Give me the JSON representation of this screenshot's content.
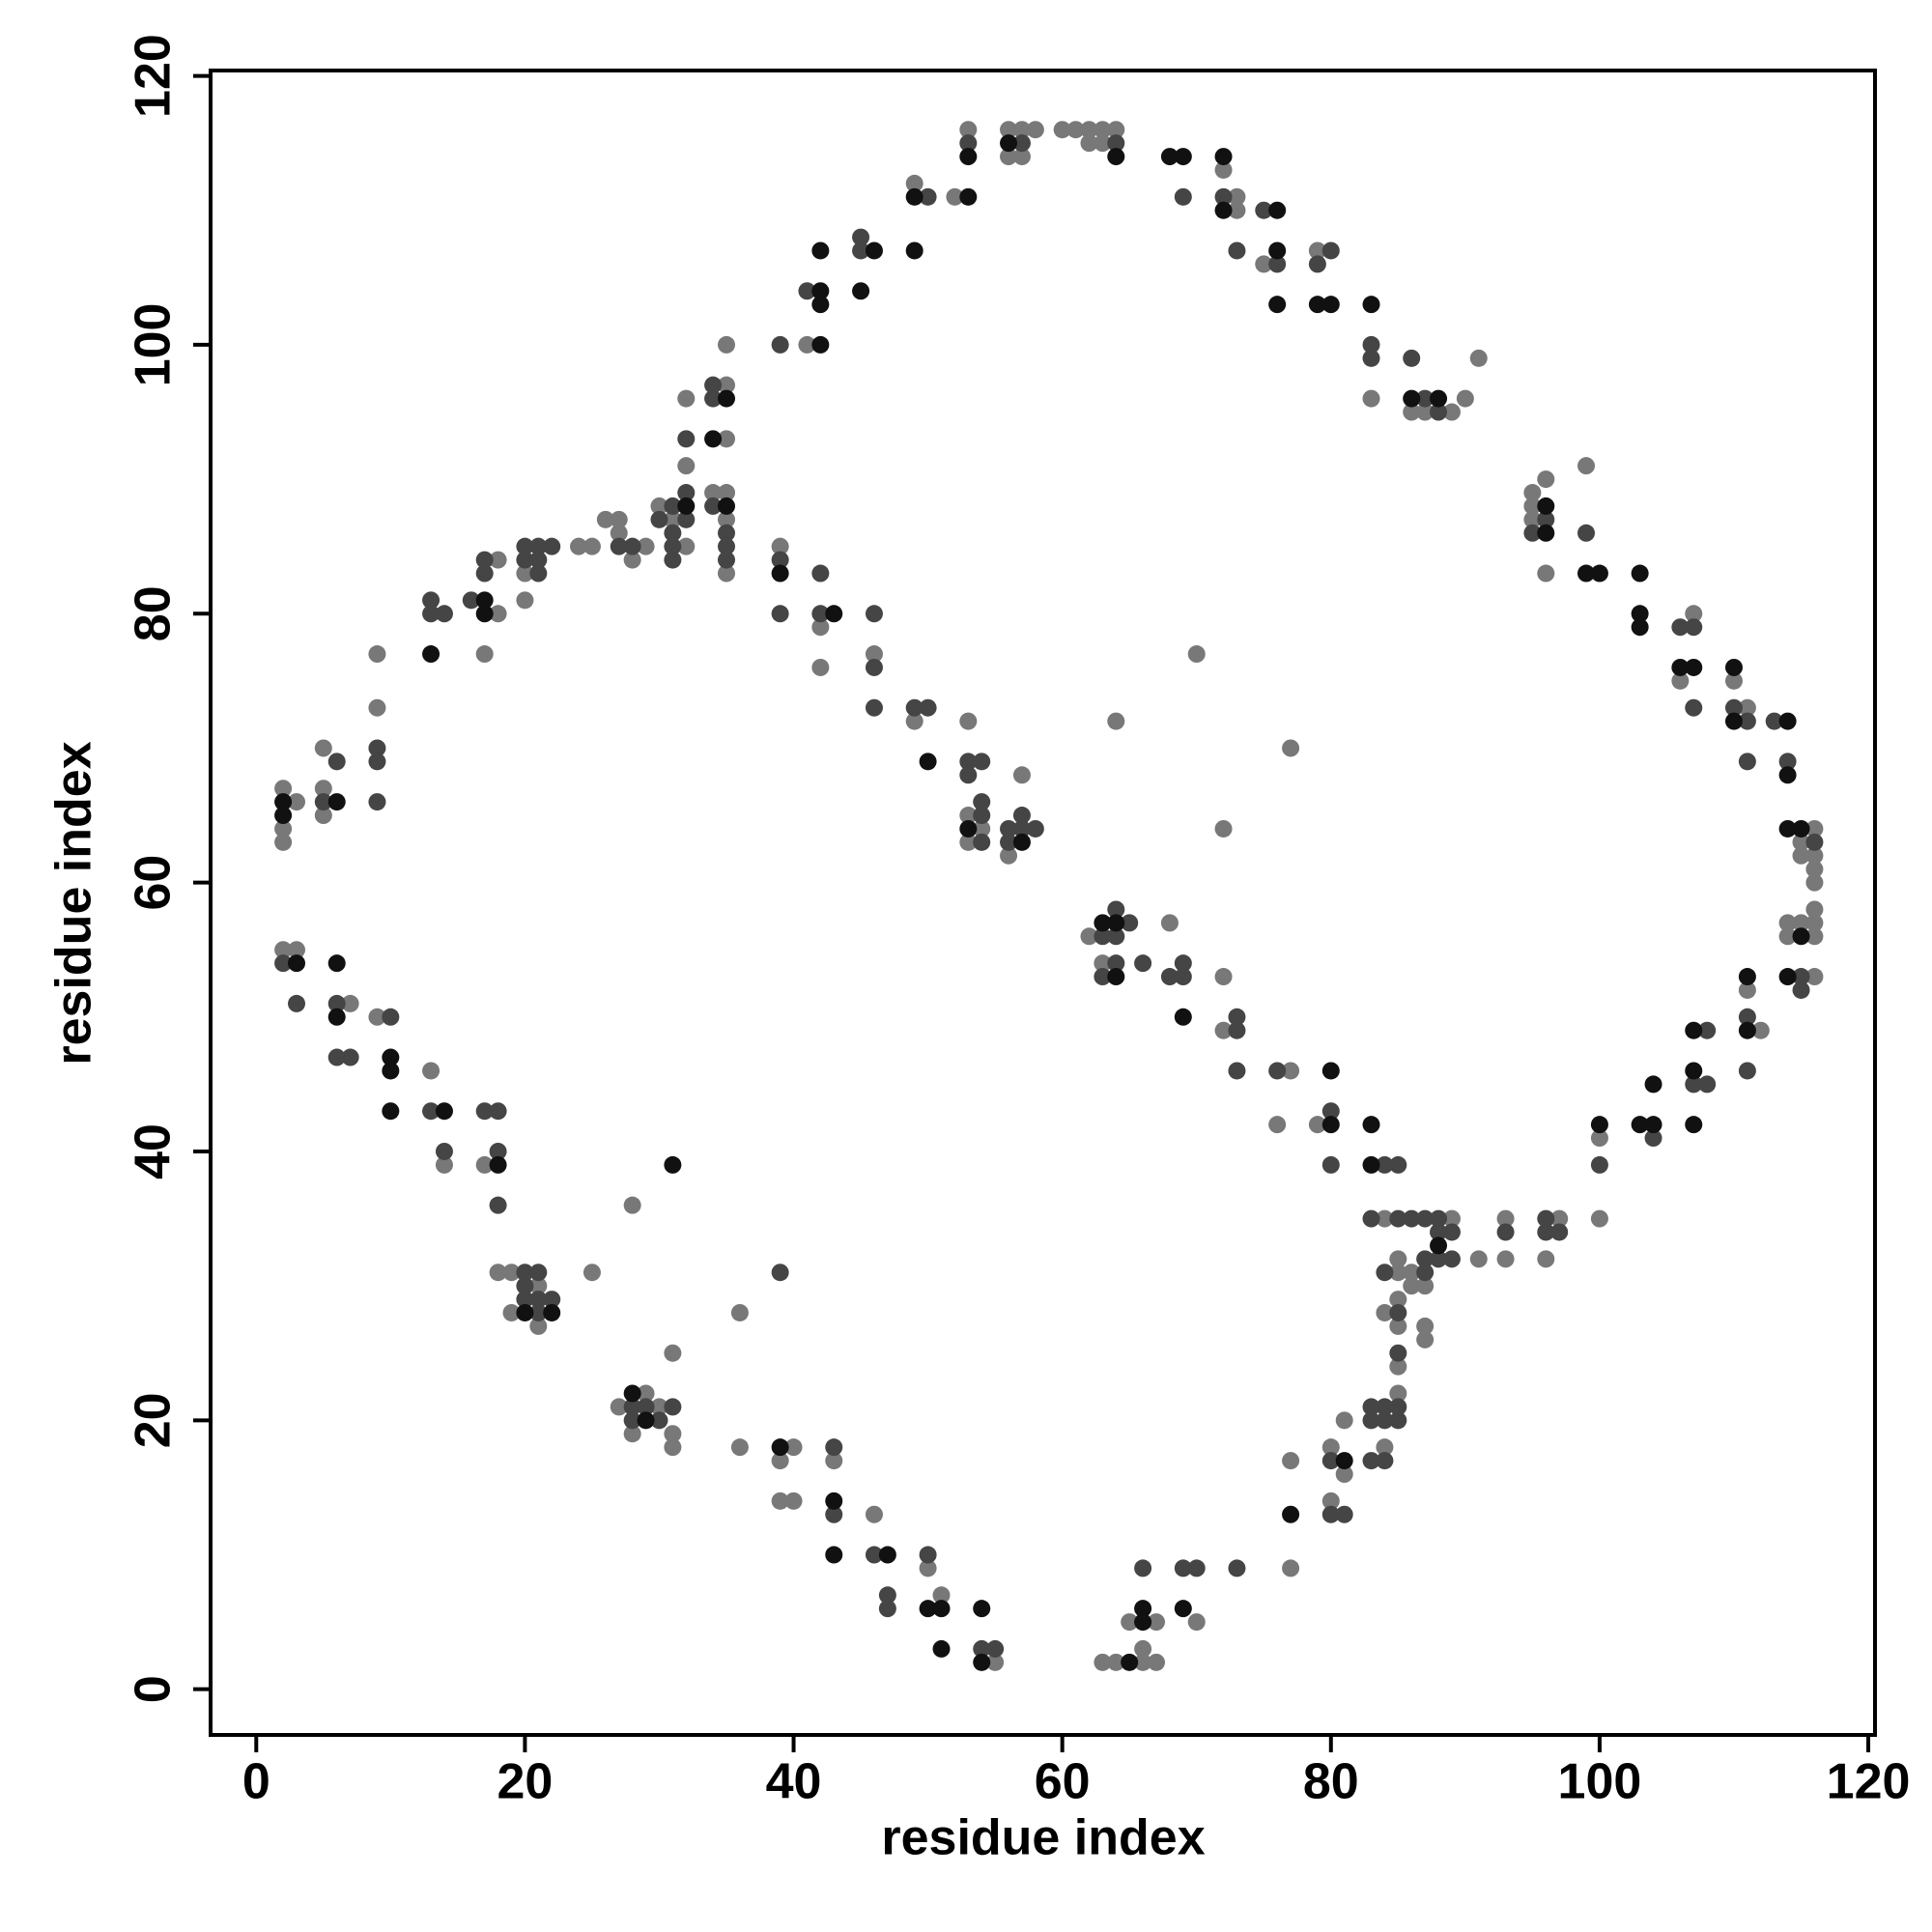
{
  "chart_data": {
    "type": "scatter",
    "x_label": "residue index",
    "y_label": "residue index",
    "xlim": [
      -3.4,
      120.5
    ],
    "ylim": [
      -3.4,
      120.4
    ],
    "xticks": [
      0,
      20,
      40,
      60,
      80,
      100,
      120
    ],
    "yticks": [
      0,
      20,
      40,
      60,
      80,
      100,
      120
    ],
    "series": [
      {
        "color": "#787878",
        "x": [
          2,
          2,
          2,
          3,
          5,
          5,
          5,
          9,
          9,
          7,
          9,
          2,
          3,
          13,
          14,
          17,
          17,
          18,
          18,
          18,
          19,
          19,
          20,
          20,
          21,
          21,
          24,
          25,
          25,
          26,
          27,
          27,
          28,
          29,
          28,
          27,
          28,
          29,
          30,
          31,
          31,
          31,
          30,
          31,
          32,
          32,
          32,
          34,
          35,
          35,
          35,
          35,
          35,
          35,
          36,
          36,
          39,
          39,
          39,
          40,
          40,
          41,
          42,
          42,
          43,
          46,
          46,
          49,
          49,
          50,
          51,
          52,
          53,
          53,
          53,
          53,
          54,
          55,
          56,
          56,
          56,
          57,
          57,
          57,
          58,
          60,
          61,
          62,
          62,
          63,
          63,
          62,
          63,
          64,
          64,
          66,
          66,
          67,
          63,
          64,
          65,
          67,
          68,
          70,
          70,
          72,
          72,
          72,
          72,
          73,
          73,
          75,
          76,
          77,
          77,
          77,
          77,
          79,
          79,
          80,
          80,
          81,
          81,
          83,
          84,
          84,
          84,
          85,
          85,
          85,
          85,
          85,
          85,
          86,
          86,
          86,
          87,
          87,
          87,
          87,
          89,
          89,
          90,
          91,
          91,
          93,
          93,
          95,
          95,
          95,
          96,
          96,
          96,
          97,
          99,
          100,
          100,
          106,
          107,
          110,
          111,
          111,
          112,
          115,
          116,
          116,
          116,
          116,
          116,
          116,
          116,
          116,
          114,
          114,
          115,
          115
        ],
        "values": [
          67,
          64,
          63,
          66,
          70,
          67,
          65,
          77,
          73,
          51,
          50,
          55,
          55,
          46,
          39,
          77,
          39,
          84,
          80,
          31,
          31,
          28,
          81,
          83,
          27,
          30,
          85,
          85,
          31,
          87,
          87,
          86,
          84,
          85,
          36,
          21,
          19,
          22,
          21,
          19,
          18,
          25,
          88,
          87,
          96,
          91,
          85,
          89,
          100,
          97,
          93,
          89,
          87,
          83,
          28,
          18,
          85,
          17,
          14,
          18,
          14,
          100,
          79,
          76,
          17,
          13,
          77,
          112,
          72,
          9,
          7,
          111,
          116,
          72,
          65,
          63,
          64,
          2,
          116,
          114,
          62,
          116,
          114,
          68,
          116,
          116,
          116,
          116,
          115,
          116,
          115,
          56,
          54,
          116,
          72,
          3,
          2,
          2,
          2,
          2,
          5,
          5,
          57,
          77,
          5,
          113,
          64,
          53,
          49,
          111,
          110,
          106,
          42,
          70,
          46,
          17,
          9,
          42,
          107,
          18,
          14,
          20,
          16,
          96,
          35,
          18,
          28,
          32,
          31,
          29,
          27,
          24,
          22,
          31,
          30,
          95,
          95,
          30,
          27,
          26,
          95,
          35,
          96,
          99,
          32,
          35,
          32,
          89,
          88,
          87,
          90,
          83,
          32,
          35,
          91,
          41,
          35,
          75,
          80,
          75,
          73,
          52,
          49,
          57,
          64,
          62,
          61,
          60,
          58,
          57,
          56,
          53,
          57,
          56,
          63,
          62
        ]
      },
      {
        "color": "#454545",
        "x": [
          6,
          9,
          9,
          9,
          5,
          13,
          13,
          14,
          16,
          17,
          17,
          20,
          20,
          21,
          21,
          21,
          22,
          27,
          28,
          30,
          31,
          31,
          31,
          31,
          32,
          32,
          32,
          34,
          34,
          34,
          35,
          35,
          35,
          39,
          41,
          45,
          45,
          50,
          53,
          57,
          64,
          69,
          72,
          73,
          75,
          76,
          79,
          80,
          83,
          83,
          86,
          87,
          88,
          96,
          95,
          99,
          106,
          107,
          107,
          110,
          111,
          111,
          113,
          114,
          116,
          115,
          115,
          111,
          111,
          108,
          107,
          108,
          104,
          100,
          96,
          96,
          97,
          93,
          89,
          89,
          88,
          88,
          88,
          87,
          87,
          87,
          86,
          85,
          85,
          85,
          85,
          85,
          84,
          84,
          84,
          84,
          83,
          83,
          83,
          83,
          81,
          80,
          80,
          73,
          70,
          69,
          66,
          55,
          54,
          50,
          47,
          47,
          46,
          43,
          43,
          39,
          30,
          29,
          28,
          28,
          31,
          22,
          21,
          21,
          21,
          20,
          20,
          20,
          18,
          18,
          18,
          17,
          14,
          13,
          10,
          7,
          6,
          6,
          3,
          2,
          39,
          39,
          42,
          42,
          46,
          46,
          46,
          49,
          50,
          53,
          53,
          54,
          54,
          54,
          54,
          56,
          56,
          57,
          57,
          58,
          63,
          63,
          64,
          64,
          64,
          65,
          66,
          68,
          69,
          69,
          73,
          73,
          73,
          76,
          80,
          80,
          84,
          85
        ],
        "values": [
          69,
          70,
          69,
          66,
          66,
          81,
          80,
          80,
          81,
          84,
          83,
          85,
          84,
          85,
          84,
          83,
          85,
          85,
          85,
          87,
          88,
          86,
          85,
          84,
          93,
          89,
          87,
          97,
          96,
          88,
          86,
          85,
          84,
          100,
          104,
          108,
          107,
          111,
          115,
          115,
          115,
          111,
          111,
          107,
          110,
          106,
          106,
          107,
          100,
          99,
          99,
          96,
          95,
          87,
          86,
          86,
          79,
          79,
          73,
          73,
          72,
          69,
          72,
          69,
          63,
          53,
          52,
          50,
          46,
          49,
          45,
          45,
          41,
          39,
          35,
          34,
          34,
          34,
          34,
          32,
          35,
          34,
          32,
          35,
          32,
          31,
          35,
          35,
          28,
          25,
          21,
          20,
          31,
          21,
          20,
          17,
          35,
          21,
          20,
          17,
          13,
          17,
          13,
          9,
          9,
          9,
          9,
          3,
          3,
          10,
          7,
          6,
          10,
          18,
          13,
          31,
          20,
          21,
          21,
          20,
          21,
          29,
          31,
          29,
          28,
          31,
          30,
          29,
          43,
          40,
          36,
          43,
          40,
          43,
          50,
          47,
          51,
          47,
          51,
          54,
          84,
          80,
          83,
          80,
          80,
          76,
          73,
          73,
          73,
          69,
          68,
          69,
          66,
          65,
          63,
          64,
          63,
          65,
          64,
          64,
          56,
          53,
          58,
          56,
          54,
          57,
          54,
          53,
          54,
          53,
          50,
          49,
          46,
          46,
          43,
          39,
          39,
          39
        ]
      },
      {
        "color": "#111111",
        "x": [
          2,
          2,
          6,
          6,
          6,
          3,
          10,
          10,
          10,
          13,
          14,
          17,
          17,
          18,
          22,
          20,
          28,
          29,
          31,
          32,
          35,
          35,
          34,
          39,
          42,
          42,
          42,
          42,
          43,
          45,
          46,
          49,
          49,
          50,
          51,
          51,
          50,
          47,
          43,
          43,
          39,
          53,
          53,
          53,
          54,
          54,
          56,
          57,
          63,
          64,
          64,
          64,
          66,
          66,
          65,
          68,
          69,
          69,
          69,
          72,
          72,
          76,
          76,
          76,
          77,
          79,
          80,
          80,
          80,
          81,
          83,
          83,
          83,
          86,
          88,
          88,
          96,
          96,
          99,
          100,
          100,
          103,
          103,
          103,
          104,
          104,
          103,
          106,
          107,
          107,
          107,
          107,
          110,
          110,
          111,
          111,
          114,
          114,
          114,
          114,
          115,
          115
        ],
        "values": [
          66,
          65,
          66,
          54,
          50,
          54,
          47,
          46,
          43,
          77,
          43,
          81,
          80,
          39,
          28,
          28,
          22,
          20,
          39,
          88,
          96,
          88,
          93,
          83,
          107,
          104,
          103,
          100,
          80,
          104,
          107,
          111,
          107,
          69,
          6,
          3,
          6,
          10,
          14,
          10,
          18,
          114,
          111,
          64,
          6,
          2,
          115,
          63,
          57,
          114,
          57,
          53,
          6,
          5,
          2,
          114,
          114,
          50,
          6,
          114,
          110,
          110,
          107,
          103,
          13,
          103,
          103,
          46,
          42,
          17,
          103,
          42,
          39,
          96,
          96,
          33,
          88,
          86,
          83,
          83,
          42,
          83,
          80,
          79,
          45,
          42,
          42,
          76,
          76,
          49,
          46,
          42,
          76,
          72,
          53,
          49,
          72,
          68,
          64,
          53,
          56,
          64
        ]
      }
    ]
  }
}
